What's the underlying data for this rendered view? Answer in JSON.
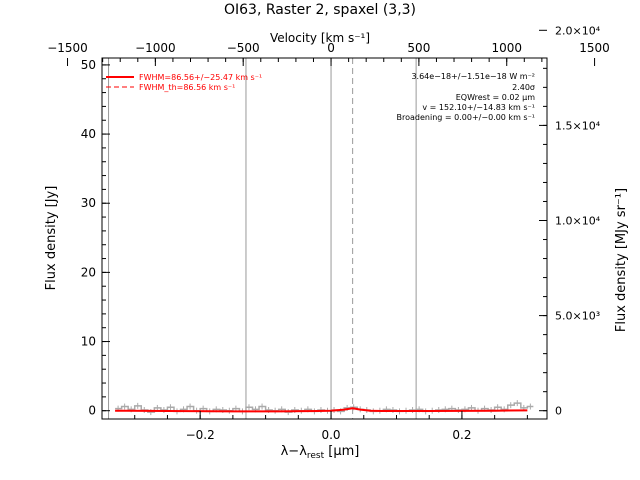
{
  "chart_data": {
    "type": "line",
    "title": "OI63, Raster 2, spaxel (3,3)",
    "xlabel": "λ-λrest [μm]",
    "x_sub": "rest",
    "ylabel": "Flux density [Jy]",
    "y2label": "Flux density [MJy sr⁻¹]",
    "top_label": "Velocity [km s⁻¹]",
    "xlim": [
      -0.35,
      0.33
    ],
    "ylim": [
      -1.2,
      51
    ],
    "x_ticks": [
      -0.2,
      0.0,
      0.2
    ],
    "x_tick_labels": [
      "−0.2",
      "0.0",
      "0.2"
    ],
    "y_ticks": [
      0,
      10,
      20,
      30,
      40,
      50
    ],
    "y_tick_labels": [
      "0",
      "10",
      "20",
      "30",
      "40",
      "50"
    ],
    "top_ticks": [
      -1500,
      -1000,
      -500,
      0,
      500,
      1000,
      1500
    ],
    "top_tick_labels": [
      "−1500",
      "−1000",
      "−500",
      "0",
      "500",
      "1000",
      "1500"
    ],
    "y2_ticks": [
      0,
      5000,
      10000,
      15000,
      20000
    ],
    "y2_tick_labels": [
      "0",
      "5.0×10³",
      "1.0×10⁴",
      "1.5×10⁴",
      "2.0×10⁴"
    ],
    "vlines_solid": [
      -0.34,
      -0.13,
      0.0,
      0.13
    ],
    "vline_dashed": 0.033,
    "legend": {
      "solid": "FWHM=86.56+/−25.47 km s⁻¹",
      "dashed": "FWHM_th=86.56 km s⁻¹"
    },
    "annotations": [
      "3.64e−18+/−1.51e−18 W m⁻²",
      "2.40σ",
      "EQWrest = 0.02 μm",
      "v = 152.10+/−14.83 km s⁻¹",
      "Broadening = 0.00+/−0.00 km s⁻¹"
    ],
    "series": [
      {
        "color": "#aaaaaa",
        "x": [
          -0.33,
          -0.32,
          -0.31,
          -0.3,
          -0.29,
          -0.28,
          -0.27,
          -0.26,
          -0.25,
          -0.24,
          -0.23,
          -0.22,
          -0.21,
          -0.2,
          -0.19,
          -0.18,
          -0.17,
          -0.16,
          -0.15,
          -0.14,
          -0.13,
          -0.12,
          -0.11,
          -0.1,
          -0.09,
          -0.08,
          -0.07,
          -0.06,
          -0.05,
          -0.04,
          -0.03,
          -0.02,
          -0.01,
          0.0,
          0.01,
          0.02,
          0.03,
          0.04,
          0.05,
          0.06,
          0.07,
          0.08,
          0.09,
          0.1,
          0.11,
          0.12,
          0.13,
          0.14,
          0.15,
          0.16,
          0.17,
          0.18,
          0.19,
          0.2,
          0.21,
          0.22,
          0.23,
          0.24,
          0.25,
          0.26,
          0.27,
          0.28,
          0.29,
          0.3
        ],
        "y": [
          0.3,
          0.6,
          0.2,
          0.7,
          0.1,
          -0.2,
          0.4,
          0.1,
          0.5,
          -0.1,
          0.2,
          0.6,
          0.0,
          0.3,
          -0.1,
          0.2,
          0.1,
          0.0,
          0.3,
          -0.1,
          0.5,
          0.2,
          0.6,
          0.1,
          0.0,
          0.2,
          -0.2,
          0.1,
          0.0,
          0.2,
          -0.1,
          0.1,
          0.0,
          0.1,
          -0.1,
          0.4,
          0.5,
          0.2,
          0.1,
          -0.1,
          0.0,
          0.2,
          0.1,
          -0.1,
          0.0,
          0.1,
          0.2,
          -0.1,
          0.0,
          0.1,
          0.2,
          0.3,
          0.1,
          0.2,
          0.4,
          0.0,
          0.3,
          0.1,
          0.5,
          0.2,
          0.8,
          1.1,
          0.4,
          0.6
        ]
      },
      {
        "color": "#ff0000",
        "x": [
          -0.33,
          -0.25,
          -0.15,
          -0.08,
          -0.02,
          0.0,
          0.02,
          0.033,
          0.045,
          0.06,
          0.08,
          0.15,
          0.25,
          0.3
        ],
        "y": [
          0.0,
          -0.05,
          -0.1,
          -0.1,
          -0.05,
          0.0,
          0.15,
          0.35,
          0.15,
          0.0,
          -0.05,
          -0.05,
          0.0,
          0.05
        ]
      }
    ]
  }
}
